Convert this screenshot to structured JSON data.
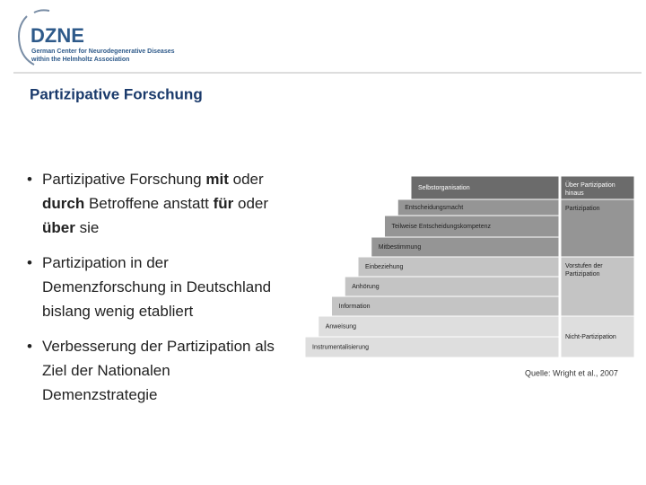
{
  "header": {
    "logo": "DZNE",
    "org_line1": "German Center for Neurodegenerative Diseases",
    "org_line2": "within the Helmholtz Association"
  },
  "title": "Partizipative Forschung",
  "bullets": [
    {
      "lines": [
        [
          {
            "text": "Partizipative Forschung",
            "bold": false
          },
          {
            "text": "mit",
            "bold": true
          },
          {
            "text": "oder",
            "bold": false
          }
        ],
        [
          {
            "text": "durch",
            "bold": true
          },
          {
            "text": "Betroffene anstatt",
            "bold": false
          },
          {
            "text": "für",
            "bold": true
          },
          {
            "text": "oder",
            "bold": false
          }
        ],
        [
          {
            "text": "über",
            "bold": true
          },
          {
            "text": "sie",
            "bold": false
          }
        ]
      ]
    },
    {
      "lines": [
        [
          {
            "text": "Partizipation in der",
            "bold": false
          }
        ],
        [
          {
            "text": "Demenzforschung in Deutschland",
            "bold": false
          }
        ],
        [
          {
            "text": "bislang wenig etabliert",
            "bold": false
          }
        ]
      ]
    },
    {
      "lines": [
        [
          {
            "text": "Verbesserung der Partizipation als",
            "bold": false
          }
        ],
        [
          {
            "text": "Ziel der Nationalen",
            "bold": false
          }
        ],
        [
          {
            "text": "Demenzstrategie",
            "bold": false
          }
        ]
      ]
    }
  ],
  "diagram": {
    "steps": [
      {
        "label": "Selbstorganisation",
        "color": "#6b6b6b"
      },
      {
        "label": "Entscheidungsmacht",
        "color": "#959595"
      },
      {
        "label": "Teilweise Entscheidungskompetenz",
        "color": "#959595"
      },
      {
        "label": "Mitbestimmung",
        "color": "#959595"
      },
      {
        "label": "Einbeziehung",
        "color": "#c4c4c4"
      },
      {
        "label": "Anhörung",
        "color": "#c4c4c4"
      },
      {
        "label": "Information",
        "color": "#c4c4c4"
      },
      {
        "label": "Anweisung",
        "color": "#dedede"
      },
      {
        "label": "Instrumentalisierung",
        "color": "#dedede"
      }
    ],
    "levels": [
      {
        "label": "Über Partizipation hinaus",
        "color": "#6b6b6b"
      },
      {
        "label": "Partizipation",
        "color": "#959595"
      },
      {
        "label": "Vorstufen der Partizipation",
        "color": "#c4c4c4"
      },
      {
        "label": "Nicht-Partizipation",
        "color": "#dedede"
      }
    ],
    "source": "Quelle: Wright et al., 2007"
  }
}
